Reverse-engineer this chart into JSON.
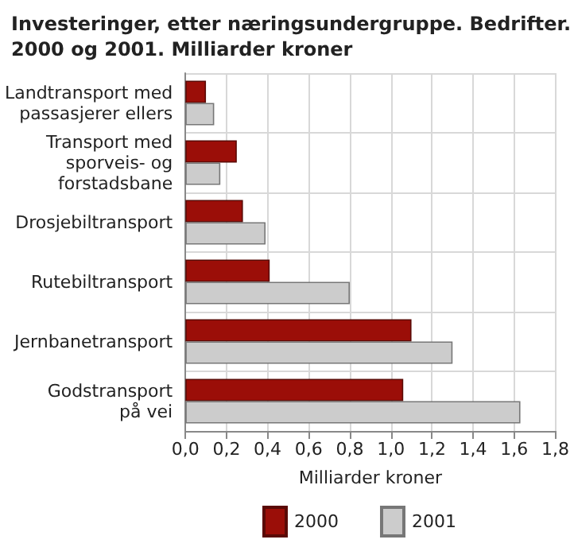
{
  "chart_data": {
    "type": "bar",
    "orientation": "horizontal",
    "title": "Investeringer, etter næringsundergruppe. Bedrifter.\n2000 og 2001. Milliarder kroner",
    "xlabel": "Milliarder kroner",
    "categories": [
      "Landtransport med\npassasjerer ellers",
      "Transport med\nsporveis- og\nforstadsbane",
      "Drosjebiltransport",
      "Rutebiltransport",
      "Jernbanetransport",
      "Godstransport\npå vei"
    ],
    "series": [
      {
        "name": "2000",
        "color": "#9b0e08",
        "values": [
          0.1,
          0.25,
          0.28,
          0.41,
          1.1,
          1.06
        ]
      },
      {
        "name": "2001",
        "color": "#cccccc",
        "values": [
          0.14,
          0.17,
          0.39,
          0.8,
          1.3,
          1.63
        ]
      }
    ],
    "xlim": [
      0,
      1.8
    ],
    "xticks": [
      {
        "value": 0,
        "label": "0,0"
      },
      {
        "value": 0.2,
        "label": "0,2"
      },
      {
        "value": 0.4,
        "label": "0,4"
      },
      {
        "value": 0.6,
        "label": "0,6"
      },
      {
        "value": 0.8,
        "label": "0,8"
      },
      {
        "value": 1,
        "label": "1,0"
      },
      {
        "value": 1.2,
        "label": "1,2"
      },
      {
        "value": 1.4,
        "label": "1,4"
      },
      {
        "value": 1.6,
        "label": "1,6"
      },
      {
        "value": 1.8,
        "label": "1,8"
      }
    ],
    "grid": true,
    "legend": "bottom"
  }
}
